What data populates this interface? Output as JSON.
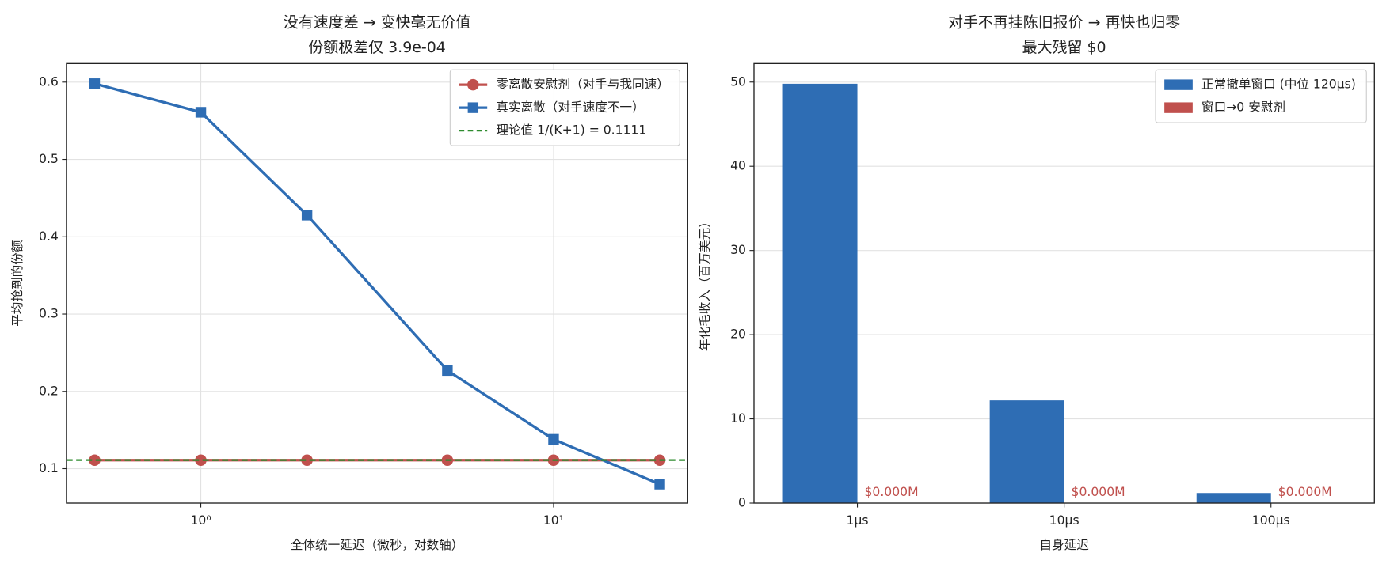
{
  "chart_data": [
    {
      "type": "line",
      "title": "没有速度差 → 变快毫无价值",
      "subtitle": "份额极差仅 3.9e-04",
      "x_label": "全体统一延迟（微秒，对数轴）",
      "y_label": "平均抢到的份额",
      "x": [
        0.5,
        1,
        2,
        5,
        10,
        20
      ],
      "xscale": "log",
      "xlim": [
        0.416,
        24.0
      ],
      "xticks": [
        {
          "value": 1,
          "label": "10⁰"
        },
        {
          "value": 10,
          "label": "10¹"
        }
      ],
      "ylim": [
        0.0555,
        0.624
      ],
      "yticks": [
        0.1,
        0.2,
        0.3,
        0.4,
        0.5,
        0.6
      ],
      "grid": true,
      "legend": "upper right",
      "series": [
        {
          "name": "零离散安慰剂（对手与我同速）",
          "color": "#c0504d",
          "marker": "o",
          "values": [
            0.111,
            0.111,
            0.111,
            0.111,
            0.111,
            0.111
          ]
        },
        {
          "name": "真实离散（对手速度不一）",
          "color": "#2e6db4",
          "marker": "s",
          "values": [
            0.598,
            0.561,
            0.428,
            0.227,
            0.138,
            0.08
          ]
        }
      ],
      "reference_line": {
        "name": "理论值 1/(K+1) = 0.1111",
        "value": 0.1111,
        "color": "#2e8b2e"
      }
    },
    {
      "type": "bar",
      "title": "对手不再挂陈旧报价 → 再快也归零",
      "subtitle": "最大残留 $0",
      "x_label": "自身延迟",
      "y_label": "年化毛收入（百万美元）",
      "categories": [
        "1μs",
        "10μs",
        "100μs"
      ],
      "ylim": [
        0,
        52.2
      ],
      "yticks": [
        0,
        10,
        20,
        30,
        40,
        50
      ],
      "grid": true,
      "legend": "upper right",
      "series": [
        {
          "name": "正常撤单窗口 (中位 120μs)",
          "color": "#2e6db4",
          "values": [
            49.8,
            12.2,
            1.2
          ]
        },
        {
          "name": "窗口→0 安慰剂",
          "color": "#c0504d",
          "values": [
            0,
            0,
            0
          ],
          "value_labels": [
            "$0.000M",
            "$0.000M",
            "$0.000M"
          ]
        }
      ]
    }
  ]
}
